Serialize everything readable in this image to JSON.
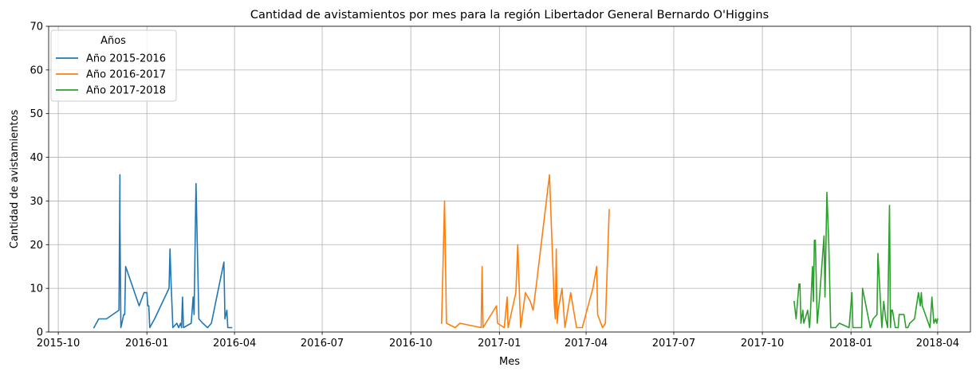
{
  "chart_data": {
    "type": "line",
    "title": "Cantidad de avistamientos por mes para la región Libertador General Bernardo O'Higgins",
    "xlabel": "Mes",
    "ylabel": "Cantidad de avistamientos",
    "x_axis_type": "date",
    "xlim": [
      "2015-09-21",
      "2018-05-05"
    ],
    "ylim": [
      0,
      70
    ],
    "y_ticks": [
      0,
      10,
      20,
      30,
      40,
      50,
      60,
      70
    ],
    "x_ticks": [
      "2015-10",
      "2016-01",
      "2016-04",
      "2016-07",
      "2016-10",
      "2017-01",
      "2017-04",
      "2017-07",
      "2017-10",
      "2018-01",
      "2018-04"
    ],
    "grid": true,
    "legend": {
      "title": "Años",
      "placement": "top-left"
    },
    "series": [
      {
        "name": "Año 2015-2016",
        "color": "#1f77b4",
        "points": [
          [
            "2015-11-07",
            1
          ],
          [
            "2015-11-12",
            3
          ],
          [
            "2015-11-20",
            3
          ],
          [
            "2015-12-03",
            5
          ],
          [
            "2015-12-04",
            36
          ],
          [
            "2015-12-04",
            26
          ],
          [
            "2015-12-05",
            1
          ],
          [
            "2015-12-08",
            4
          ],
          [
            "2015-12-09",
            4
          ],
          [
            "2015-12-10",
            15
          ],
          [
            "2015-12-24",
            6
          ],
          [
            "2015-12-29",
            9
          ],
          [
            "2016-01-01",
            9
          ],
          [
            "2016-01-02",
            6
          ],
          [
            "2016-01-03",
            6
          ],
          [
            "2016-01-04",
            1
          ],
          [
            "2016-01-09",
            3
          ],
          [
            "2016-01-24",
            10
          ],
          [
            "2016-01-25",
            19
          ],
          [
            "2016-01-26",
            12
          ],
          [
            "2016-01-28",
            1
          ],
          [
            "2016-02-01",
            2
          ],
          [
            "2016-02-03",
            1
          ],
          [
            "2016-02-05",
            2
          ],
          [
            "2016-02-06",
            1
          ],
          [
            "2016-02-07",
            8
          ],
          [
            "2016-02-08",
            1
          ],
          [
            "2016-02-16",
            2
          ],
          [
            "2016-02-18",
            8
          ],
          [
            "2016-02-19",
            4
          ],
          [
            "2016-02-21",
            34
          ],
          [
            "2016-02-24",
            3
          ],
          [
            "2016-02-28",
            2
          ],
          [
            "2016-03-04",
            1
          ],
          [
            "2016-03-08",
            2
          ],
          [
            "2016-03-21",
            16
          ],
          [
            "2016-03-22",
            3
          ],
          [
            "2016-03-24",
            5
          ],
          [
            "2016-03-25",
            1
          ],
          [
            "2016-03-29",
            1
          ]
        ]
      },
      {
        "name": "Año 2016-2017",
        "color": "#ff7f0e",
        "points": [
          [
            "2016-11-02",
            2
          ],
          [
            "2016-11-05",
            30
          ],
          [
            "2016-11-07",
            2
          ],
          [
            "2016-11-16",
            1
          ],
          [
            "2016-11-21",
            2
          ],
          [
            "2016-12-13",
            1
          ],
          [
            "2016-12-14",
            15
          ],
          [
            "2016-12-15",
            1
          ],
          [
            "2016-12-29",
            6
          ],
          [
            "2016-12-30",
            2
          ],
          [
            "2017-01-06",
            1
          ],
          [
            "2017-01-09",
            8
          ],
          [
            "2017-01-10",
            1
          ],
          [
            "2017-01-18",
            9
          ],
          [
            "2017-01-20",
            20
          ],
          [
            "2017-01-23",
            1
          ],
          [
            "2017-01-28",
            9
          ],
          [
            "2017-02-02",
            7
          ],
          [
            "2017-02-05",
            5
          ],
          [
            "2017-02-09",
            12
          ],
          [
            "2017-02-22",
            36
          ],
          [
            "2017-02-27",
            6
          ],
          [
            "2017-02-28",
            3
          ],
          [
            "2017-03-01",
            19
          ],
          [
            "2017-03-02",
            2
          ],
          [
            "2017-03-03",
            5
          ],
          [
            "2017-03-07",
            10
          ],
          [
            "2017-03-10",
            1
          ],
          [
            "2017-03-16",
            9
          ],
          [
            "2017-03-22",
            1
          ],
          [
            "2017-03-28",
            1
          ],
          [
            "2017-04-08",
            10
          ],
          [
            "2017-04-12",
            15
          ],
          [
            "2017-04-13",
            4
          ],
          [
            "2017-04-18",
            1
          ],
          [
            "2017-04-21",
            2
          ],
          [
            "2017-04-25",
            28
          ]
        ]
      },
      {
        "name": "Año 2017-2018",
        "color": "#2ca02c",
        "points": [
          [
            "2017-11-03",
            7
          ],
          [
            "2017-11-05",
            3
          ],
          [
            "2017-11-08",
            11
          ],
          [
            "2017-11-09",
            11
          ],
          [
            "2017-11-10",
            2
          ],
          [
            "2017-11-12",
            5
          ],
          [
            "2017-11-13",
            2
          ],
          [
            "2017-11-17",
            5
          ],
          [
            "2017-11-19",
            1
          ],
          [
            "2017-11-20",
            5
          ],
          [
            "2017-11-22",
            15
          ],
          [
            "2017-11-23",
            7
          ],
          [
            "2017-11-24",
            21
          ],
          [
            "2017-11-25",
            21
          ],
          [
            "2017-11-27",
            2
          ],
          [
            "2017-11-29",
            7
          ],
          [
            "2017-12-04",
            22
          ],
          [
            "2017-12-05",
            8
          ],
          [
            "2017-12-07",
            32
          ],
          [
            "2017-12-09",
            20
          ],
          [
            "2017-12-11",
            1
          ],
          [
            "2017-12-16",
            1
          ],
          [
            "2017-12-20",
            2
          ],
          [
            "2017-12-30",
            1
          ],
          [
            "2018-01-02",
            9
          ],
          [
            "2018-01-03",
            1
          ],
          [
            "2018-01-07",
            1
          ],
          [
            "2018-01-12",
            1
          ],
          [
            "2018-01-13",
            10
          ],
          [
            "2018-01-21",
            1
          ],
          [
            "2018-01-24",
            3
          ],
          [
            "2018-01-28",
            4
          ],
          [
            "2018-01-29",
            18
          ],
          [
            "2018-02-01",
            5
          ],
          [
            "2018-02-02",
            1
          ],
          [
            "2018-02-04",
            7
          ],
          [
            "2018-02-06",
            3
          ],
          [
            "2018-02-08",
            1
          ],
          [
            "2018-02-10",
            29
          ],
          [
            "2018-02-11",
            1
          ],
          [
            "2018-02-12",
            5
          ],
          [
            "2018-02-13",
            5
          ],
          [
            "2018-02-16",
            1
          ],
          [
            "2018-02-19",
            1
          ],
          [
            "2018-02-20",
            4
          ],
          [
            "2018-02-25",
            4
          ],
          [
            "2018-02-27",
            1
          ],
          [
            "2018-03-01",
            1
          ],
          [
            "2018-03-03",
            2
          ],
          [
            "2018-03-08",
            3
          ],
          [
            "2018-03-12",
            9
          ],
          [
            "2018-03-14",
            6
          ],
          [
            "2018-03-15",
            9
          ],
          [
            "2018-03-16",
            6
          ],
          [
            "2018-03-24",
            1
          ],
          [
            "2018-03-26",
            8
          ],
          [
            "2018-03-28",
            2
          ],
          [
            "2018-03-30",
            3
          ],
          [
            "2018-03-31",
            2
          ],
          [
            "2018-04-01",
            3
          ]
        ]
      }
    ]
  }
}
